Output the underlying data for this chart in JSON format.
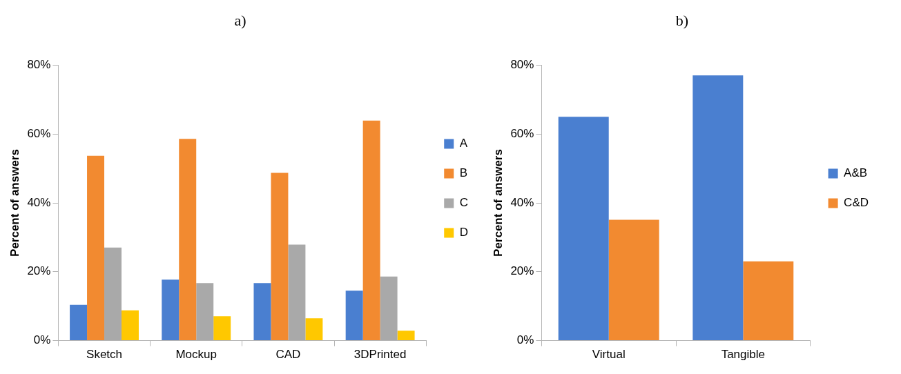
{
  "chart_data": [
    {
      "type": "bar",
      "title": "a)",
      "ylabel": "Percent of answers",
      "categories": [
        "Sketch",
        "Mockup",
        "CAD",
        "3DPrinted"
      ],
      "series": [
        {
          "name": "A",
          "color": "#4a7fd0",
          "values": [
            10.4,
            17.7,
            16.7,
            14.5
          ]
        },
        {
          "name": "B",
          "color": "#f28a30",
          "values": [
            53.7,
            58.6,
            48.7,
            63.9
          ]
        },
        {
          "name": "C",
          "color": "#a9a9a9",
          "values": [
            27.0,
            16.7,
            27.9,
            18.6
          ]
        },
        {
          "name": "D",
          "color": "#ffc800",
          "values": [
            8.8,
            7.1,
            6.5,
            2.9
          ]
        }
      ],
      "ylim": [
        0,
        80
      ],
      "yticks": [
        {
          "value": 0,
          "label": "0%"
        },
        {
          "value": 20,
          "label": "20%"
        },
        {
          "value": 40,
          "label": "40%"
        },
        {
          "value": 60,
          "label": "60%"
        },
        {
          "value": 80,
          "label": "80%"
        }
      ],
      "grid": false,
      "legend": "right"
    },
    {
      "type": "bar",
      "title": "b)",
      "ylabel": "Percent of answers",
      "categories": [
        "Virtual",
        "Tangible"
      ],
      "series": [
        {
          "name": "A&B",
          "color": "#4a7fd0",
          "values": [
            65.0,
            77.0
          ]
        },
        {
          "name": "C&D",
          "color": "#f28a30",
          "values": [
            35.1,
            23.0
          ]
        }
      ],
      "ylim": [
        0,
        80
      ],
      "yticks": [
        {
          "value": 0,
          "label": "0%"
        },
        {
          "value": 20,
          "label": "20%"
        },
        {
          "value": 40,
          "label": "40%"
        },
        {
          "value": 60,
          "label": "60%"
        },
        {
          "value": 80,
          "label": "80%"
        }
      ],
      "grid": false,
      "legend": "right"
    }
  ]
}
